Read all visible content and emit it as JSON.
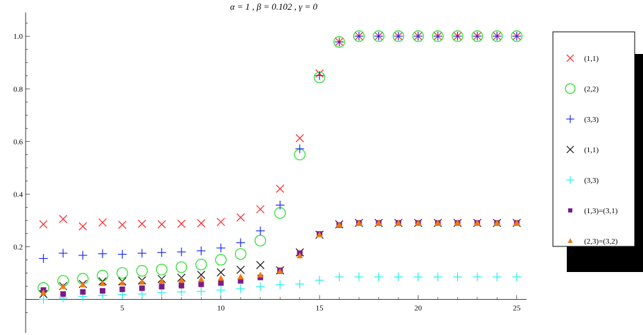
{
  "chart_data": {
    "type": "scatter",
    "title": "α = 1 ,  β = 0.102 ,  γ = 0",
    "xlabel": "",
    "ylabel": "",
    "xlim": [
      0.1,
      25.5
    ],
    "ylim": [
      -0.07,
      1.09
    ],
    "x_ticks": [
      5,
      10,
      15,
      20,
      25
    ],
    "y_ticks": [
      0.2,
      0.4,
      0.6,
      0.8,
      1.0
    ],
    "y_tick_labels": [
      "0.2",
      "0.4",
      "0.6",
      "0.8",
      "1.0"
    ],
    "grid": false,
    "legend_position": "right",
    "series": [
      {
        "name": "(1,1)",
        "marker": "x",
        "color": "#ff2020",
        "x": [
          1,
          2,
          3,
          4,
          5,
          6,
          7,
          8,
          9,
          10,
          11,
          12,
          13,
          14,
          15,
          16,
          17,
          18,
          19,
          20,
          21,
          22,
          23,
          24,
          25
        ],
        "y": [
          0.285,
          0.305,
          0.277,
          0.292,
          0.283,
          0.287,
          0.285,
          0.287,
          0.289,
          0.294,
          0.311,
          0.342,
          0.42,
          0.612,
          0.858,
          0.978,
          1.0,
          1.0,
          1.0,
          1.0,
          1.0,
          1.0,
          1.0,
          1.0,
          1.0
        ]
      },
      {
        "name": "(2,2)",
        "marker": "circle",
        "color": "#22dd22",
        "x": [
          1,
          2,
          3,
          4,
          5,
          6,
          7,
          8,
          9,
          10,
          11,
          12,
          13,
          14,
          15,
          16,
          17,
          18,
          19,
          20,
          21,
          22,
          23,
          24,
          25
        ],
        "y": [
          0.043,
          0.07,
          0.078,
          0.09,
          0.1,
          0.108,
          0.113,
          0.122,
          0.132,
          0.15,
          0.172,
          0.223,
          0.328,
          0.55,
          0.843,
          0.978,
          1.0,
          1.0,
          1.0,
          1.0,
          1.0,
          1.0,
          1.0,
          1.0,
          1.0
        ]
      },
      {
        "name": "(3,3)",
        "marker": "plus",
        "color": "#1a2ff0",
        "x": [
          1,
          2,
          3,
          4,
          5,
          6,
          7,
          8,
          9,
          10,
          11,
          12,
          13,
          14,
          15,
          16,
          17,
          18,
          19,
          20,
          21,
          22,
          23,
          24,
          25
        ],
        "y": [
          0.155,
          0.175,
          0.167,
          0.173,
          0.171,
          0.175,
          0.178,
          0.18,
          0.184,
          0.195,
          0.215,
          0.26,
          0.358,
          0.572,
          0.85,
          0.978,
          1.0,
          1.0,
          1.0,
          1.0,
          1.0,
          1.0,
          1.0,
          1.0,
          1.0
        ]
      },
      {
        "name": "(1,1)",
        "marker": "x",
        "color": "#111111",
        "x": [
          1,
          2,
          3,
          4,
          5,
          6,
          7,
          8,
          9,
          10,
          11,
          12,
          13,
          14,
          15,
          16,
          17,
          18,
          19,
          20,
          21,
          22,
          23,
          24,
          25
        ],
        "y": [
          0.02,
          0.05,
          0.058,
          0.068,
          0.068,
          0.072,
          0.077,
          0.082,
          0.093,
          0.102,
          0.112,
          0.13,
          0.11,
          0.178,
          0.245,
          0.285,
          0.29,
          0.29,
          0.29,
          0.29,
          0.29,
          0.29,
          0.29,
          0.29,
          0.29
        ]
      },
      {
        "name": "(3,3)",
        "marker": "plus",
        "color": "#22eeee",
        "x": [
          1,
          2,
          3,
          4,
          5,
          6,
          7,
          8,
          9,
          10,
          11,
          12,
          13,
          14,
          15,
          16,
          17,
          18,
          19,
          20,
          21,
          22,
          23,
          24,
          25
        ],
        "y": [
          0.0,
          0.005,
          0.01,
          0.015,
          0.018,
          0.02,
          0.025,
          0.028,
          0.03,
          0.035,
          0.04,
          0.048,
          0.055,
          0.058,
          0.072,
          0.085,
          0.085,
          0.085,
          0.085,
          0.085,
          0.085,
          0.085,
          0.085,
          0.085,
          0.085
        ]
      },
      {
        "name": "(1,3)=(3,1)",
        "marker": "square",
        "color": "#7b1a8b",
        "x": [
          1,
          2,
          3,
          4,
          5,
          6,
          7,
          8,
          9,
          10,
          11,
          12,
          13,
          14,
          15,
          16,
          17,
          18,
          19,
          20,
          21,
          22,
          23,
          24,
          25
        ],
        "y": [
          0.035,
          0.02,
          0.028,
          0.032,
          0.038,
          0.042,
          0.048,
          0.052,
          0.057,
          0.062,
          0.07,
          0.083,
          0.11,
          0.175,
          0.248,
          0.282,
          0.29,
          0.29,
          0.29,
          0.29,
          0.29,
          0.29,
          0.29,
          0.29,
          0.29
        ]
      },
      {
        "name": "(2,3)=(3,2)",
        "marker": "triangle",
        "color": "#f07a10",
        "x": [
          1,
          2,
          3,
          4,
          5,
          6,
          7,
          8,
          9,
          10,
          11,
          12,
          13,
          14,
          15,
          16,
          17,
          18,
          19,
          20,
          21,
          22,
          23,
          24,
          25
        ],
        "y": [
          0.025,
          0.048,
          0.055,
          0.06,
          0.062,
          0.065,
          0.068,
          0.072,
          0.075,
          0.08,
          0.085,
          0.092,
          0.105,
          0.165,
          0.245,
          0.283,
          0.29,
          0.29,
          0.29,
          0.29,
          0.29,
          0.29,
          0.29,
          0.29,
          0.29
        ]
      }
    ]
  }
}
